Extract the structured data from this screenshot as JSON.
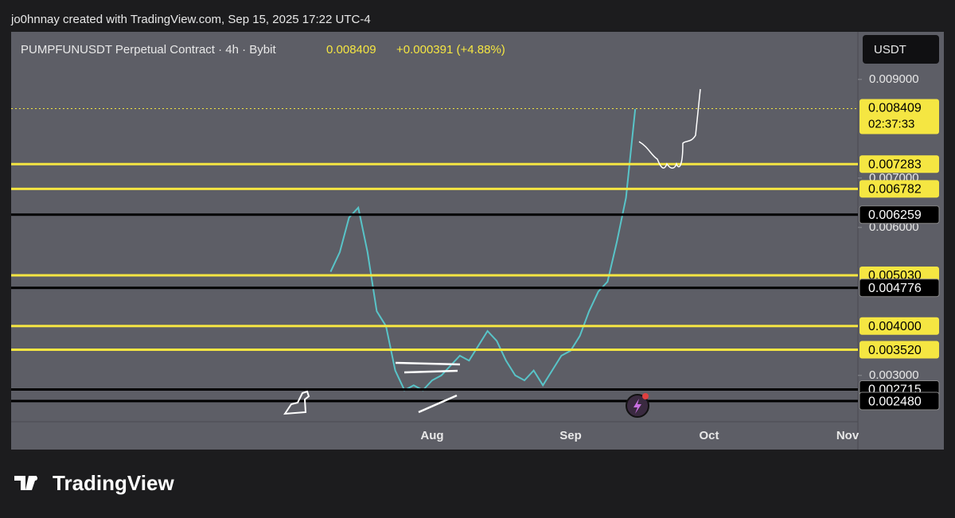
{
  "header": {
    "credit": "jo0hnnay created with TradingView.com, Sep 15, 2025 17:22 UTC-4",
    "symbol": "PUMPFUNUSDT Perpetual Contract · 4h · Bybit",
    "price": "0.008409",
    "change": "+0.000391 (+4.88%)"
  },
  "currency_button": "USDT",
  "countdown": "02:37:33",
  "logo": "TradingView",
  "chart_data": {
    "type": "line",
    "color": "#58c4c8",
    "categories": [
      null,
      null,
      null,
      null,
      null,
      null,
      null,
      null,
      null,
      null,
      null,
      null,
      null,
      null,
      null,
      null,
      null,
      null,
      null,
      null,
      null,
      null,
      null,
      null,
      null,
      null,
      null,
      null,
      null,
      null,
      null,
      null,
      null,
      null,
      null,
      null,
      null,
      null,
      null,
      null,
      null,
      null,
      null,
      null,
      null,
      "Aug",
      null,
      null,
      null,
      null,
      null,
      null,
      null,
      null,
      null,
      null,
      null,
      null,
      null,
      null,
      "Sep",
      null,
      null,
      null,
      null,
      null,
      null,
      null,
      null,
      null,
      null,
      null,
      null,
      null,
      null,
      "Oct",
      null,
      null,
      null,
      null,
      null,
      null,
      null,
      null,
      null,
      null,
      null,
      null,
      null,
      null,
      "Nov"
    ],
    "values": [
      null,
      null,
      null,
      null,
      null,
      null,
      null,
      null,
      null,
      null,
      null,
      null,
      null,
      null,
      null,
      null,
      null,
      null,
      null,
      null,
      null,
      null,
      null,
      null,
      null,
      null,
      null,
      null,
      null,
      null,
      null,
      null,
      null,
      null,
      0.0051,
      0.0055,
      0.0062,
      0.0064,
      0.0055,
      0.0043,
      0.004,
      0.0031,
      0.0027,
      0.0028,
      0.0027,
      0.0029,
      0.003,
      0.0032,
      0.0034,
      0.0033,
      0.0036,
      0.0039,
      0.0037,
      0.0033,
      0.003,
      0.0029,
      0.0031,
      0.0028,
      0.0031,
      0.0034,
      0.0035,
      0.0038,
      0.0043,
      0.0047,
      0.0049,
      0.0057,
      0.0066,
      0.0084,
      null,
      null,
      null,
      null,
      null,
      null,
      null,
      null,
      null,
      null,
      null,
      null,
      null,
      null,
      null,
      null,
      null,
      null,
      null,
      null,
      null,
      null,
      null
    ],
    "ylim": [
      0.0019,
      0.0099
    ],
    "yticks": [
      {
        "value": 0.009,
        "label": "0.009000"
      },
      {
        "value": 0.007,
        "label": "0.007000"
      },
      {
        "value": 0.006,
        "label": "0.006000"
      },
      {
        "value": 0.003,
        "label": "0.003000"
      }
    ],
    "last_price": {
      "value": 0.008409,
      "label": "0.008409",
      "color": "#f5e642"
    },
    "levels": [
      {
        "value": 0.007283,
        "label": "0.007283",
        "color": "#f5e642"
      },
      {
        "value": 0.006782,
        "label": "0.006782",
        "color": "#f5e642"
      },
      {
        "value": 0.006259,
        "label": "0.006259",
        "color": "#000000"
      },
      {
        "value": 0.00503,
        "label": "0.005030",
        "color": "#f5e642"
      },
      {
        "value": 0.004776,
        "label": "0.004776",
        "color": "#000000"
      },
      {
        "value": 0.004,
        "label": "0.004000",
        "color": "#f5e642"
      },
      {
        "value": 0.00352,
        "label": "0.003520",
        "color": "#f5e642"
      },
      {
        "value": 0.002715,
        "label": "0.002715",
        "color": "#000000"
      },
      {
        "value": 0.00248,
        "label": "0.002480",
        "color": "#000000"
      }
    ]
  }
}
